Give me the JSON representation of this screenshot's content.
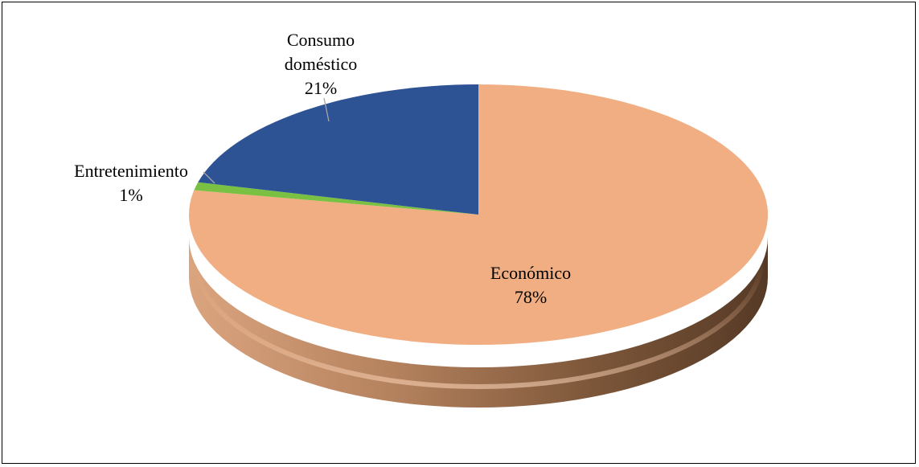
{
  "chart_data": {
    "type": "pie",
    "style": "3d",
    "title": "",
    "slices": [
      {
        "category": "Económico",
        "value": 78,
        "label": "78%",
        "color": "#F0AE82"
      },
      {
        "category": "Entretenimiento",
        "value": 1,
        "label": "1%",
        "color": "#7AC143"
      },
      {
        "category": "Consumo doméstico",
        "value": 21,
        "label": "21%",
        "color": "#2E5395"
      }
    ],
    "label_lines": {
      "consumo": [
        "Consumo",
        "doméstico"
      ],
      "entretenimiento": [
        "Entretenimiento"
      ]
    },
    "legend": false
  }
}
